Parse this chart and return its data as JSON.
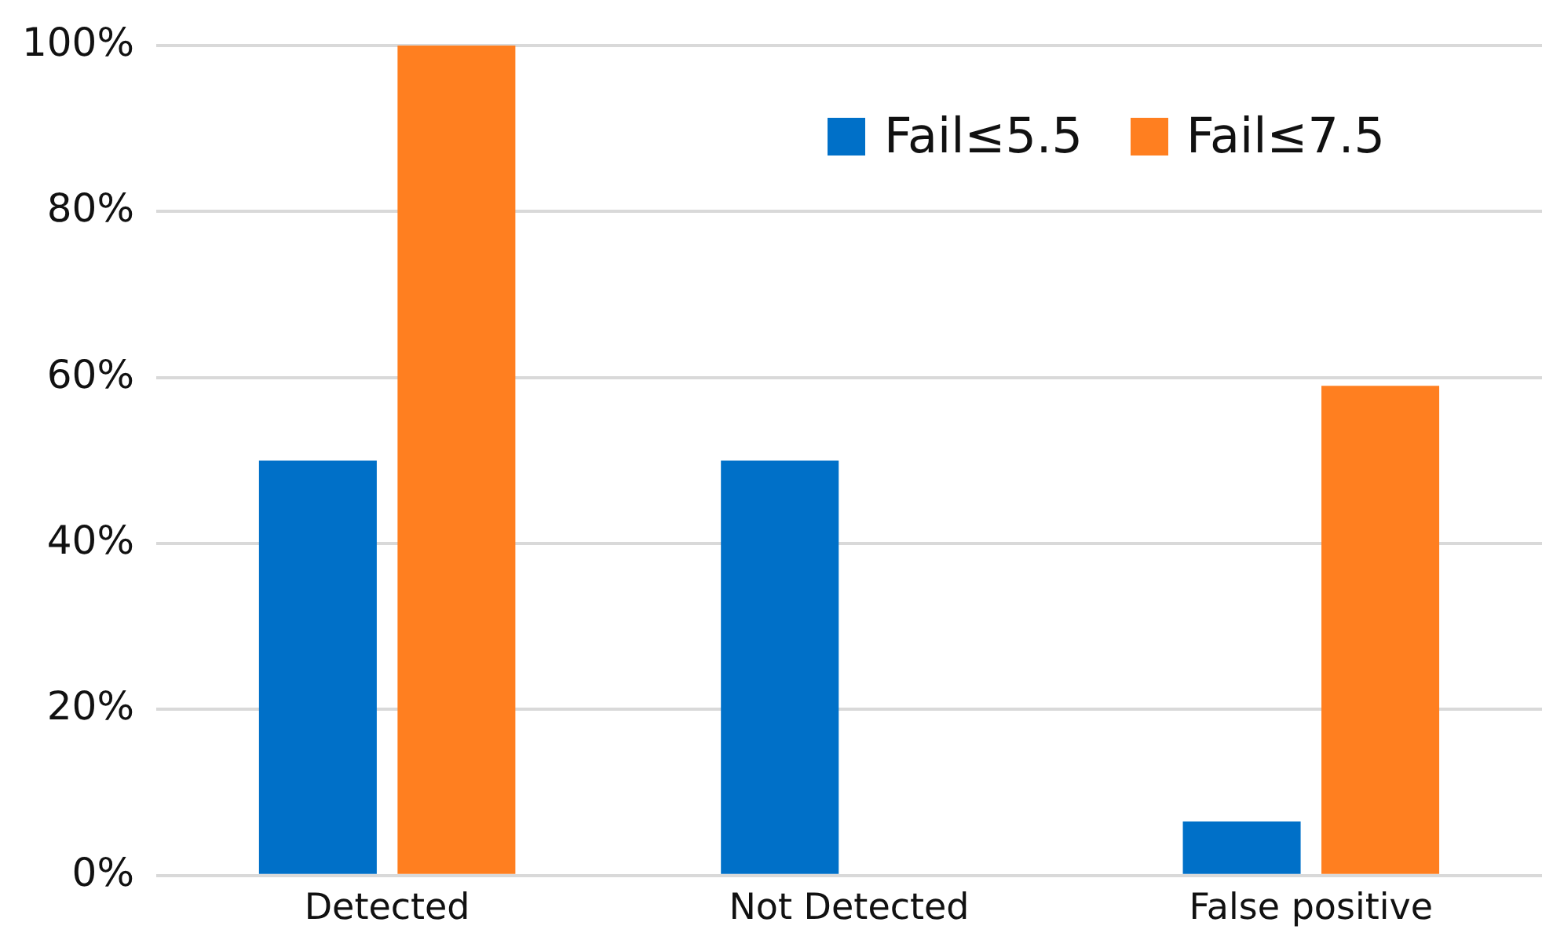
{
  "chart_data": {
    "type": "bar",
    "categories": [
      "Detected",
      "Not Detected",
      "False positive"
    ],
    "series": [
      {
        "name": "Fail≤5.5",
        "color": "#0070c8",
        "values": [
          50,
          50,
          6.5
        ]
      },
      {
        "name": "Fail≤7.5",
        "color": "#ff7f20",
        "values": [
          100,
          0,
          59
        ]
      }
    ],
    "ylim": [
      0,
      100
    ],
    "yticks": [
      {
        "value": 0,
        "label": "0%"
      },
      {
        "value": 20,
        "label": "20%"
      },
      {
        "value": 40,
        "label": "40%"
      },
      {
        "value": 60,
        "label": "60%"
      },
      {
        "value": 80,
        "label": "80%"
      },
      {
        "value": 100,
        "label": "100%"
      }
    ],
    "grid": "y",
    "legend": "top right"
  }
}
